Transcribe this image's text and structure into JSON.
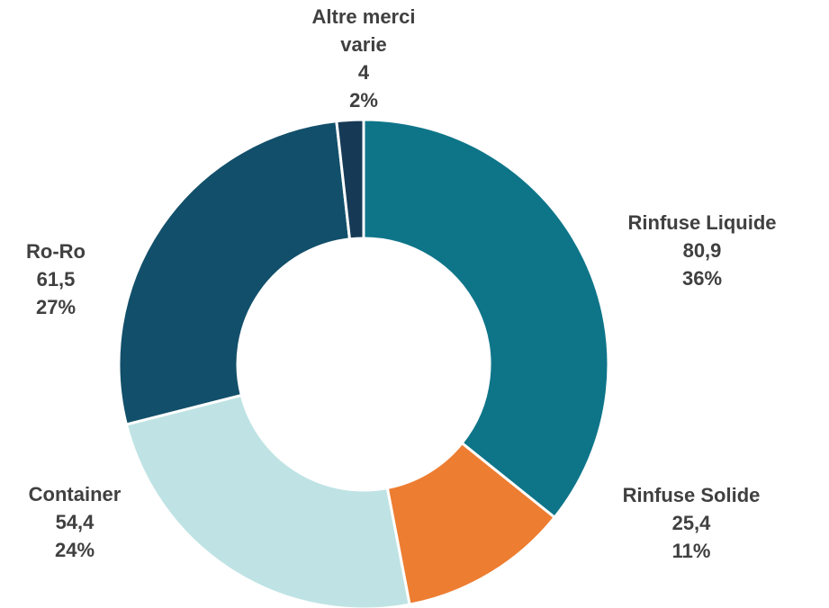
{
  "chart_data": {
    "type": "donut",
    "categories": [
      "Rinfuse Liquide",
      "Rinfuse Solide",
      "Container",
      "Ro-Ro",
      "Altre merci varie"
    ],
    "values": [
      80.9,
      25.4,
      54.4,
      61.5,
      4
    ],
    "value_labels": [
      "80,9",
      "25,4",
      "54,4",
      "61,5",
      "4"
    ],
    "percent_labels": [
      "36%",
      "11%",
      "24%",
      "27%",
      "2%"
    ],
    "colors": [
      "#0e7589",
      "#ed7d31",
      "#bfe3e4",
      "#124f6a",
      "#163a56"
    ]
  }
}
